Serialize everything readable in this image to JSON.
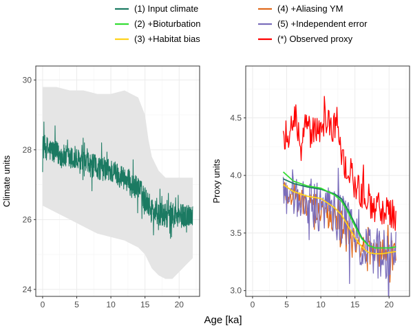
{
  "legend": {
    "entries": [
      {
        "label": "(1) Input climate",
        "color": "#1b7a62"
      },
      {
        "label": "(2) +Bioturbation",
        "color": "#33dd33"
      },
      {
        "label": "(3) +Habitat bias",
        "color": "#ffd21a"
      },
      {
        "label": "(4) +Aliasing YM",
        "color": "#e0691c"
      },
      {
        "label": "(5) +Independent error",
        "color": "#7a6dbb"
      },
      {
        "label": "(*) Observed proxy",
        "color": "#ff0000"
      }
    ]
  },
  "xlabel": "Age [ka]",
  "chart_data": [
    {
      "type": "line",
      "panel": "left",
      "xlabel": "Age [ka]",
      "ylabel": "Climate units",
      "xlim": [
        -1,
        23
      ],
      "ylim": [
        23.8,
        30.4
      ],
      "xticks": [
        0,
        5,
        10,
        15,
        20
      ],
      "yticks": [
        24,
        26,
        28,
        30
      ],
      "grid": true,
      "band": {
        "x": [
          0,
          2,
          4,
          6,
          8,
          10,
          12,
          13,
          14,
          15,
          15.5,
          16,
          17,
          18,
          19,
          20,
          21,
          22
        ],
        "lower": [
          26.4,
          26.2,
          26.0,
          25.8,
          25.6,
          25.5,
          25.4,
          25.3,
          25.2,
          25.0,
          24.8,
          24.6,
          24.4,
          24.3,
          24.3,
          24.5,
          24.7,
          24.9
        ],
        "upper": [
          29.8,
          29.8,
          29.7,
          29.7,
          29.6,
          29.6,
          29.7,
          29.6,
          29.5,
          29.0,
          28.3,
          27.8,
          27.4,
          27.2,
          27.2,
          27.2,
          27.2,
          27.2
        ],
        "color": "#e5e5e5"
      },
      "series": [
        {
          "name": "(1) Input climate",
          "color": "#1b7a62",
          "x": [
            0,
            1,
            2,
            3,
            4,
            5,
            6,
            7,
            8,
            9,
            10,
            11,
            12,
            13,
            14,
            15,
            16,
            17,
            18,
            19,
            20,
            21,
            22
          ],
          "y": [
            28.1,
            28.0,
            27.9,
            27.8,
            27.75,
            27.7,
            27.6,
            27.55,
            27.5,
            27.45,
            27.4,
            27.3,
            27.2,
            27.0,
            26.9,
            26.6,
            26.3,
            26.15,
            26.1,
            26.1,
            26.1,
            26.1,
            26.2
          ],
          "noise": 0.35
        }
      ]
    },
    {
      "type": "line",
      "panel": "right",
      "xlabel": "Age [ka]",
      "ylabel": "Proxy units",
      "xlim": [
        -1,
        23
      ],
      "ylim": [
        2.95,
        4.95
      ],
      "xticks": [
        0,
        5,
        10,
        15,
        20
      ],
      "yticks": [
        3.0,
        3.5,
        4.0,
        4.5
      ],
      "grid": true,
      "series": [
        {
          "name": "(4) +Aliasing YM",
          "color": "#e0691c",
          "x": [
            4.5,
            6,
            8,
            10,
            11,
            12,
            13,
            14,
            15,
            16,
            17,
            18,
            19,
            20,
            21
          ],
          "y": [
            3.88,
            3.82,
            3.75,
            3.7,
            3.65,
            3.62,
            3.6,
            3.52,
            3.45,
            3.38,
            3.33,
            3.32,
            3.32,
            3.33,
            3.35
          ],
          "noise": 0.12
        },
        {
          "name": "(5) +Independent error",
          "color": "#7a6dbb",
          "x": [
            4.5,
            6,
            8,
            10,
            11,
            12,
            13,
            14,
            15,
            16,
            17,
            18,
            19,
            20,
            21
          ],
          "y": [
            3.95,
            3.85,
            3.78,
            3.72,
            3.68,
            3.66,
            3.62,
            3.55,
            3.48,
            3.4,
            3.35,
            3.33,
            3.32,
            3.32,
            3.32
          ],
          "noise": 0.22
        },
        {
          "name": "(*) Observed proxy",
          "color": "#ff0000",
          "x": [
            4.5,
            6,
            8,
            10,
            11,
            12,
            13,
            14,
            15,
            16,
            17,
            18,
            19,
            20,
            21
          ],
          "y": [
            4.35,
            4.4,
            4.38,
            4.42,
            4.45,
            4.4,
            4.2,
            4.05,
            3.95,
            3.85,
            3.78,
            3.72,
            3.7,
            3.68,
            3.62
          ],
          "noise": 0.15
        },
        {
          "name": "(1) Input climate",
          "color": "#1b7a62",
          "x": [
            4.5,
            6,
            8,
            10,
            11,
            12,
            13,
            14,
            15,
            16,
            17,
            18,
            19,
            20,
            21
          ],
          "y": [
            3.97,
            3.93,
            3.9,
            3.88,
            3.86,
            3.84,
            3.8,
            3.7,
            3.58,
            3.46,
            3.39,
            3.37,
            3.37,
            3.37,
            3.38
          ],
          "noise": 0
        },
        {
          "name": "(2) +Bioturbation",
          "color": "#33dd33",
          "x": [
            4.5,
            6,
            8,
            10,
            11,
            12,
            13,
            14,
            15,
            16,
            17,
            18,
            19,
            20,
            21
          ],
          "y": [
            4.03,
            3.95,
            3.91,
            3.89,
            3.86,
            3.83,
            3.78,
            3.68,
            3.56,
            3.45,
            3.39,
            3.37,
            3.37,
            3.37,
            3.38
          ],
          "noise": 0
        },
        {
          "name": "(3) +Habitat bias",
          "color": "#ffd21a",
          "x": [
            4.5,
            6,
            8,
            10,
            11,
            12,
            13,
            14,
            15,
            16,
            17,
            18,
            19,
            20,
            21
          ],
          "y": [
            3.92,
            3.86,
            3.82,
            3.8,
            3.76,
            3.72,
            3.66,
            3.56,
            3.46,
            3.38,
            3.33,
            3.32,
            3.32,
            3.33,
            3.34
          ],
          "noise": 0
        }
      ]
    }
  ]
}
